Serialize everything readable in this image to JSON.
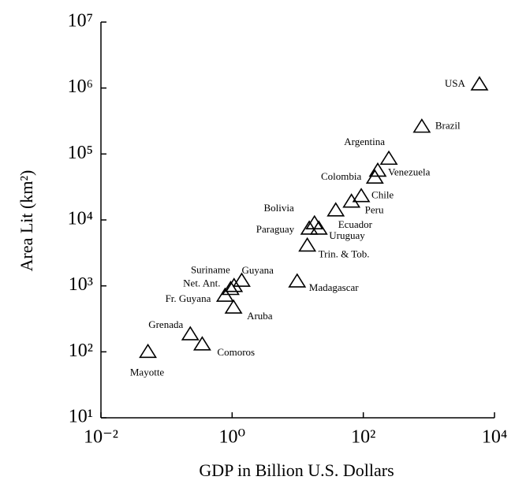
{
  "chart_data": {
    "type": "scatter",
    "xlabel": "GDP in  Billion U.S.  Dollars",
    "ylabel": "Area Lit (km²)",
    "log_x": true,
    "log_y": true,
    "color": "#000000",
    "point_labels": [
      "USA",
      "Brazil",
      "Argentina",
      "Venezuela",
      "Colombia",
      "Chile",
      "Peru",
      "Bolivia",
      "Ecuador",
      "Paraguay",
      "Uruguay",
      "Trin. & Tob.",
      "Madagascar",
      "Guyana",
      "Suriname",
      "Net. Ant.",
      "Fr. Guyana",
      "Aruba",
      "Grenada",
      "Comoros",
      "Mayotte"
    ],
    "x": [
      5900,
      780,
      245,
      166,
      150,
      93,
      66,
      18,
      38,
      15,
      21,
      14,
      9.8,
      1.4,
      1.07,
      0.95,
      0.78,
      1.05,
      0.23,
      0.35,
      0.052
    ],
    "values": [
      1140000,
      260000,
      85000,
      56000,
      44000,
      23000,
      19000,
      8900,
      14000,
      7400,
      7400,
      4100,
      1170,
      1200,
      1000,
      900,
      710,
      470,
      185,
      130,
      100
    ],
    "xlim": [
      0.01,
      10000
    ],
    "ylim": [
      10,
      10000000
    ],
    "xticks": [
      {
        "value": 0.01,
        "label": "10⁻²"
      },
      {
        "value": 1,
        "label": "10⁰"
      },
      {
        "value": 100,
        "label": "10²"
      },
      {
        "value": 10000,
        "label": "10⁴"
      }
    ],
    "yticks": [
      {
        "value": 10,
        "label": "10¹"
      },
      {
        "value": 100,
        "label": "10²"
      },
      {
        "value": 1000,
        "label": "10³"
      },
      {
        "value": 10000,
        "label": "10⁴"
      },
      {
        "value": 100000,
        "label": "10⁵"
      },
      {
        "value": 1000000,
        "label": "10⁶"
      },
      {
        "value": 10000000,
        "label": "10⁷"
      }
    ]
  }
}
